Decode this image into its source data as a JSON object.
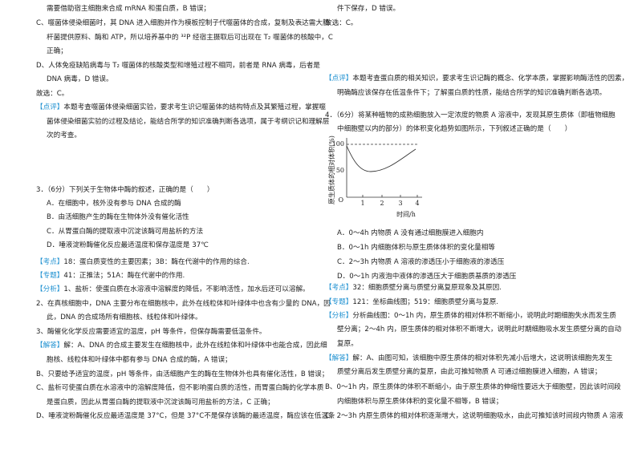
{
  "left_column": [
    {
      "text": "需要借助宿主细胞来合成 mRNA 和蛋白质，B 错误；"
    },
    {
      "text": "C、噬菌体侵染细菌时，其 DNA 进入细胞并作为模板控制子代噬菌体的合成，复制及表达需大肠"
    },
    {
      "text": "杆菌提供原料、酶和 ATP，所以培养基中的 ³²P 经宿主摄取后可出现在 T₂ 噬菌体的核酸中，C"
    },
    {
      "text": "正确；"
    },
    {
      "text": "D、人体免疫缺陷病毒与 T₂ 噬菌体的核酸类型和增殖过程不相同，前者是 RNA 病毒，后者是"
    },
    {
      "text": "DNA 病毒，D 错误。"
    },
    {
      "text": "故选：C。"
    },
    {
      "tag": "【点评】",
      "text": "本题考查噬菌体侵染细菌实验，要求考生识记噬菌体的结构特点及其繁殖过程，掌握噬"
    },
    {
      "text": "菌体侵染细菌实验的过程及结论，能结合所学的知识准确判断各选项，属于考纲识记和理解层"
    },
    {
      "text": "次的考查。"
    },
    {
      "text": "3．（6分）下列关于生物体中酶的叙述，正确的是（　　）"
    },
    {
      "text": "A．在细胞中，核外没有参与 DNA 合成的酶"
    },
    {
      "text": "B．由活细胞产生的酶在生物体外没有催化活性"
    },
    {
      "text": "C．从胃蛋白酶的提取液中沉淀该酶可用盐析的方法"
    },
    {
      "text": "D．唾液淀粉酶催化反应最适温度和保存温度是 37℃"
    },
    {
      "tag": "【考点】",
      "text": "18：蛋白质变性的主要因素；3B：酶在代谢中的作用的综合."
    },
    {
      "tag": "【专题】",
      "text": "41：正推法；51A：酶在代谢中的作用."
    },
    {
      "tag": "【分析】",
      "text": "1、盐析：使蛋白质在水溶液中溶解度的降低，不影响活性，加水后还可以溶解。"
    },
    {
      "text": "2、在真核细胞中，DNA 主要分布在细胞核中，此外在线粒体和叶绿体中也含有少量的 DNA，因"
    },
    {
      "text": "此，DNA 的合成场所有细胞核、线粒体和叶绿体。"
    },
    {
      "text": "3、酶催化化学反应需要适宜的温度，pH 等条件，但保存酶需要低温条件。"
    },
    {
      "tag": "【解答】",
      "text": "解：A、DNA 的合成主要发生在细胞核中，此外在线粒体和叶绿体中也能合成，因此细"
    },
    {
      "text": "胞核、线粒体和叶绿体中都有参与 DNA 合成的酶，A 错误；"
    },
    {
      "text": "B、只要给予适宜的温度，pH 等条件，由活细胞产生的酶在生物体外也具有催化活性，B 错误；"
    },
    {
      "text": "C、盐析可使蛋白质在水溶液中的溶解度降低，但不影响蛋白质的活性，而胃蛋白酶的化学本质"
    },
    {
      "text": "是蛋白质，因此从胃蛋白酶的提取液中沉淀该酶可用盐析的方法，C 正确；"
    },
    {
      "text": "D、唾液淀粉酶催化反应最适温度是 37°C，但是 37°C不是保存该酶的最适温度，酶应该在低温条"
    }
  ],
  "right_column": [
    {
      "text": "件下保存，D 错误。"
    },
    {
      "text": "故选：C。"
    },
    {
      "tag": "【点评】",
      "text": "本题考查蛋白质的相关知识，要求考生识记酶的概念、化学本质，掌握影响酶活性的因素，"
    },
    {
      "text": "明确酶应该保存在低温条件下；了解蛋白质的性质，能结合所学的知识准确判断各选项。"
    },
    {
      "text": "4．（6分）将某种植物的成熟细胞放入一定浓度的物质 A 溶液中，发现其原生质体（即植物细胞"
    },
    {
      "text": "中细胞壁以内的部分）的体积变化趋势如图所示，下列叙述正确的是（　　）"
    },
    {
      "text": "A．0～4h 内物质 A 没有通过细胞膜进入细胞内"
    },
    {
      "text": "B．0～1h 内细胞体积与原生质体体积的变化量相等"
    },
    {
      "text": "C．2～3h 内物质 A 溶液的渗透压小于细胞液的渗透压"
    },
    {
      "text": "D．0～1h 内液泡中液体的渗透压大于细胞质基质的渗透压"
    },
    {
      "tag": "【考点】",
      "text": "32：细胞质壁分离与质壁分离复原现象及其原因."
    },
    {
      "tag": "【专题】",
      "text": "121：坐标曲线图；519：细胞质壁分离与复原."
    },
    {
      "tag": "【分析】",
      "text": "分析曲线图：0～1h 内，原生质体的相对体积不断缩小，说明此时期细胞失水而发生质"
    },
    {
      "text": "壁分离；2～4h 内，原生质体的相对体积不断增大，说明此时期细胞吸水发生质壁分离的自动"
    },
    {
      "text": "复原。"
    },
    {
      "tag": "【解答】",
      "text": "解：A、由图可知，该细胞中原生质体的相对体积先减小后增大，这说明该细胞先发生"
    },
    {
      "text": "质壁分离后发生质壁分离的复原，由此可推知物质 A 可通过细胞膜进入细胞，A 错误；"
    },
    {
      "text": "B、0～1h 内，原生质体的体积不断缩小，由于原生质体的伸缩性要远大于细胞壁，因此该时间段"
    },
    {
      "text": "内细胞体积与原生质体体积的变化量不相等，B 错误；"
    },
    {
      "text": "C、2～3h 内原生质体的相对体积逐渐增大，这说明细胞吸水，由此可推知该时间段内物质 A 溶液"
    }
  ],
  "figure": {
    "y_label": "原生质体的相对体积(%)",
    "x_label": "时间/h",
    "origin": "O",
    "yticks": [
      "100",
      "50"
    ],
    "xticks": [
      "1",
      "2",
      "3",
      "4"
    ]
  }
}
